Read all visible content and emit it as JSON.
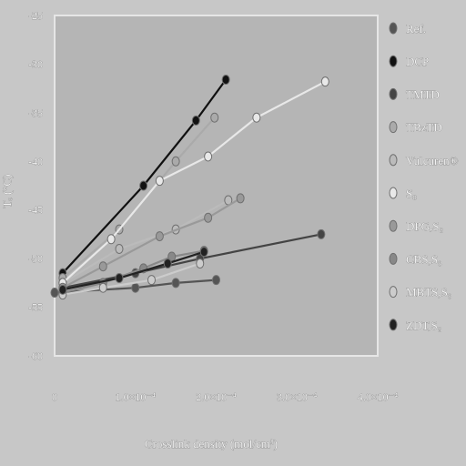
{
  "chart_data": {
    "type": "scatter",
    "title": "",
    "xlabel": "Crosslink density (mol/cm³)",
    "ylabel": "Tₑ (°C)",
    "xlim": [
      0,
      0.0004
    ],
    "ylim": [
      -60,
      -25
    ],
    "x_ticks": [
      "0",
      "1.0×10⁻⁴",
      "2.0×10⁻⁴",
      "3.0×10⁻⁴",
      "4.0×10⁻⁴"
    ],
    "y_ticks": [
      "-25",
      "-30",
      "-35",
      "-40",
      "-45",
      "-50",
      "-55",
      "-60"
    ],
    "grid": false,
    "legend_position": "right",
    "series": [
      {
        "name": "Ref.",
        "color": "#555555",
        "x": [
          0.0,
          0.0001,
          0.00015,
          0.0002
        ],
        "y": [
          -53.5,
          -53.0,
          -52.5,
          -52.2
        ]
      },
      {
        "name": "DCP",
        "color": "#111111",
        "x": [
          1e-05,
          0.00011,
          0.000175,
          0.000212
        ],
        "y": [
          -51.5,
          -42.5,
          -35.8,
          -31.6
        ]
      },
      {
        "name": "TMTD",
        "color": "#444444",
        "x": [
          1e-05,
          0.0001,
          0.00018,
          0.00033
        ],
        "y": [
          -53.0,
          -51.5,
          -50.0,
          -47.5
        ]
      },
      {
        "name": "TBzTD",
        "color": "#aaaaaa",
        "x": [
          1e-05,
          8e-05,
          0.00015,
          0.000198
        ],
        "y": [
          -52.0,
          -47.0,
          -40.0,
          -35.5
        ]
      },
      {
        "name": "Vulcuren®",
        "color": "#bbbbbb",
        "x": [
          1e-05,
          8e-05,
          0.00015,
          0.000215
        ],
        "y": [
          -52.5,
          -49.0,
          -47.0,
          -44.0
        ]
      },
      {
        "name": "S₈",
        "color": "#e8e8e8",
        "x": [
          1e-05,
          7e-05,
          0.00013,
          0.00019,
          0.00025,
          0.000335
        ],
        "y": [
          -52.5,
          -48.0,
          -42.0,
          -39.5,
          -35.5,
          -31.8
        ]
      },
      {
        "name": "DPG,S₈",
        "color": "#999999",
        "x": [
          1e-05,
          6e-05,
          0.00013,
          0.00019,
          0.00023
        ],
        "y": [
          -53.0,
          -50.8,
          -47.7,
          -45.8,
          -43.8
        ]
      },
      {
        "name": "CBS,S₈",
        "color": "#888888",
        "x": [
          1e-05,
          6e-05,
          0.00011,
          0.000145,
          0.000185
        ],
        "y": [
          -53.5,
          -52.5,
          -51.0,
          -49.8,
          -49.2
        ]
      },
      {
        "name": "MBTS,S₈",
        "color": "#cccccc",
        "x": [
          1e-05,
          6e-05,
          0.00012,
          0.00018
        ],
        "y": [
          -53.7,
          -53.0,
          -52.2,
          -50.5
        ]
      },
      {
        "name": "ZDT,S₈",
        "color": "#222222",
        "x": [
          1e-05,
          8e-05,
          0.00014,
          0.000185
        ],
        "y": [
          -53.2,
          -52.0,
          -50.5,
          -49.3
        ]
      }
    ]
  }
}
